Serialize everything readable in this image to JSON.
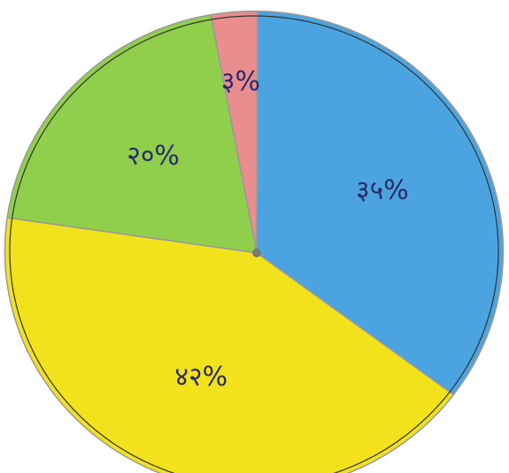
{
  "chart_data": {
    "type": "pie",
    "categories": [
      null,
      null,
      null,
      null
    ],
    "values": [
      3,
      35,
      42,
      20
    ],
    "value_labels": [
      "३%",
      "३५%",
      "४२%",
      "२०%"
    ],
    "colors": [
      "#e98d8f",
      "#4ba4df",
      "#f1e21c",
      "#90cf4c"
    ]
  }
}
